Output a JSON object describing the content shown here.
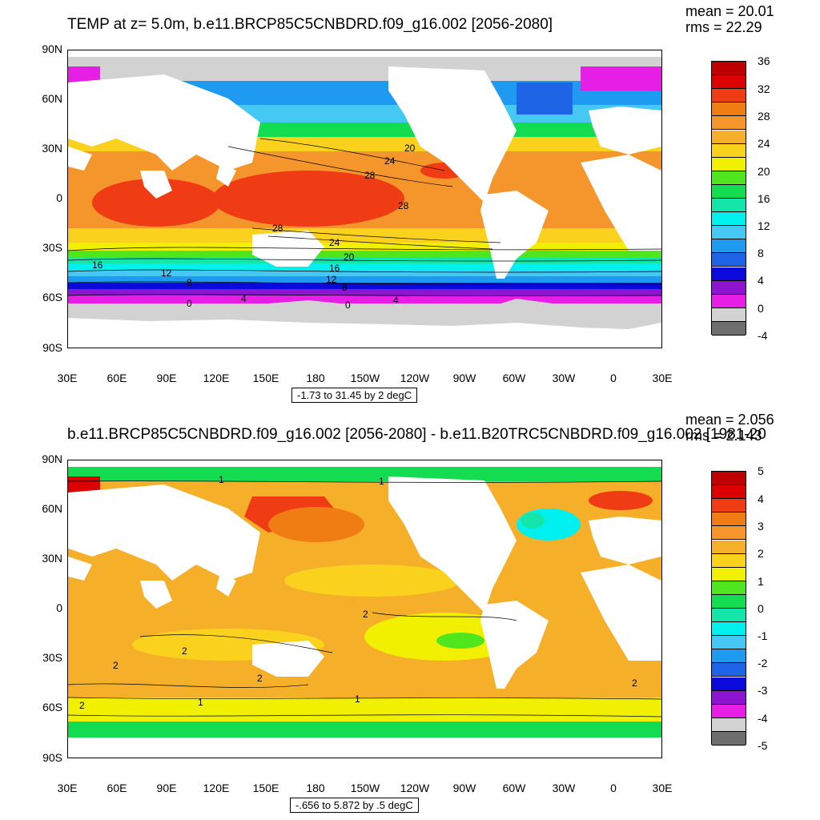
{
  "panels": [
    {
      "title": "TEMP at z=   5.0m, b.e11.BRCP85C5CNBDRD.f09_g16.002 [2056-2080]",
      "stats": {
        "mean": "mean = 20.01",
        "rms": "rms = 22.29"
      },
      "range_text": "-1.73 to 31.45 by 2 degC",
      "lat_labels": [
        "90N",
        "60N",
        "30N",
        "0",
        "30S",
        "60S",
        "90S"
      ],
      "lon_labels": [
        "30E",
        "60E",
        "90E",
        "120E",
        "150E",
        "180",
        "150W",
        "120W",
        "90W",
        "60W",
        "30W",
        "0",
        "30E"
      ],
      "legend": {
        "colors": [
          "#6e6e6e",
          "#d2d2d2",
          "#e61ee6",
          "#8c14d2",
          "#0a0adc",
          "#1e64e6",
          "#1e9bf0",
          "#46c8f5",
          "#00f0f0",
          "#14e6aa",
          "#14dc50",
          "#50e61e",
          "#f0f000",
          "#fad21e",
          "#f5af28",
          "#f5962d",
          "#f07d14",
          "#f03c14",
          "#dc0000",
          "#be0000"
        ],
        "labels": [
          "36",
          "32",
          "28",
          "24",
          "20",
          "16",
          "12",
          "8",
          "4",
          "0",
          "-4"
        ]
      },
      "contour_labels": [
        "20",
        "24",
        "28",
        "28",
        "28",
        "24",
        "20",
        "16",
        "12",
        "8",
        "16",
        "12",
        "8",
        "4",
        "4",
        "0",
        "0"
      ]
    },
    {
      "title": "b.e11.BRCP85C5CNBDRD.f09_g16.002 [2056-2080] - b.e11.B20TRC5CNBDRD.f09_g16.002 [1981-20",
      "stats": {
        "mean": "mean = 2.056",
        "rms": "rms = 2.143"
      },
      "range_text": "-.656 to 5.872 by .5 degC",
      "lat_labels": [
        "90N",
        "60N",
        "30N",
        "0",
        "30S",
        "60S",
        "90S"
      ],
      "lon_labels": [
        "30E",
        "60E",
        "90E",
        "120E",
        "150E",
        "180",
        "150W",
        "120W",
        "90W",
        "60W",
        "30W",
        "0",
        "30E"
      ],
      "legend": {
        "colors": [
          "#6e6e6e",
          "#d2d2d2",
          "#e61ee6",
          "#8c14d2",
          "#0a0adc",
          "#1e64e6",
          "#1e9bf0",
          "#46c8f5",
          "#00f0f0",
          "#14e6aa",
          "#14dc50",
          "#50e61e",
          "#f0f000",
          "#fad21e",
          "#f5af28",
          "#f5962d",
          "#f07d14",
          "#f03c14",
          "#dc0000",
          "#be0000"
        ],
        "labels": [
          "5",
          "4",
          "3",
          "2",
          "1",
          "0",
          "-1",
          "-2",
          "-3",
          "-4",
          "-5"
        ]
      },
      "contour_labels": [
        "1",
        "1",
        "2",
        "2",
        "2",
        "2",
        "2",
        "1",
        "1",
        "2"
      ]
    }
  ]
}
